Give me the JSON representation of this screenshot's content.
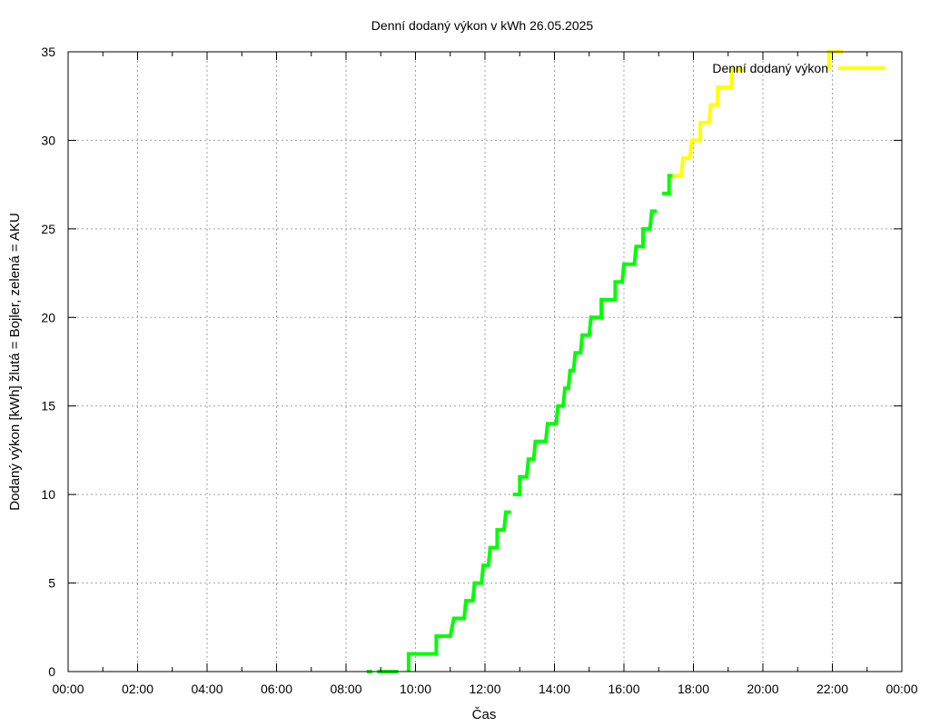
{
  "chart_data": {
    "type": "line",
    "title": "Denní dodaný výkon v kWh 26.05.2025",
    "xlabel": "Čas",
    "ylabel": "Dodaný výkon [kWh]  žlutá = Bojler, zelená = AKU",
    "xlim": [
      0,
      24
    ],
    "ylim": [
      0,
      35
    ],
    "x_ticks": [
      "00:00",
      "02:00",
      "04:00",
      "06:00",
      "08:00",
      "10:00",
      "12:00",
      "14:00",
      "16:00",
      "18:00",
      "20:00",
      "22:00",
      "00:00"
    ],
    "y_ticks": [
      "0",
      "5",
      "10",
      "15",
      "20",
      "25",
      "30",
      "35"
    ],
    "grid": true,
    "legend": {
      "position": "top-right",
      "label": "Denní dodaný výkon",
      "color": "#ffff00"
    },
    "colors": {
      "aku": "#00ff00",
      "bojler": "#ffff00",
      "grid": "#a0a0a0"
    },
    "series": [
      {
        "name": "zelená = AKU",
        "color": "#00ff00",
        "segments": [
          [
            [
              8.6,
              0
            ],
            [
              8.75,
              0
            ]
          ],
          [
            [
              8.9,
              0
            ],
            [
              9.5,
              0
            ]
          ],
          [
            [
              9.8,
              0
            ],
            [
              9.8,
              1
            ],
            [
              10.6,
              1
            ],
            [
              10.6,
              2
            ],
            [
              11.0,
              2
            ],
            [
              11.1,
              3
            ],
            [
              11.4,
              3
            ],
            [
              11.45,
              4
            ],
            [
              11.65,
              4
            ],
            [
              11.7,
              5
            ],
            [
              11.9,
              5
            ],
            [
              11.95,
              6
            ],
            [
              12.1,
              6
            ],
            [
              12.15,
              7
            ],
            [
              12.35,
              7
            ],
            [
              12.35,
              8
            ],
            [
              12.55,
              8
            ],
            [
              12.6,
              9
            ],
            [
              12.75,
              9
            ]
          ],
          [
            [
              12.8,
              10
            ],
            [
              13.0,
              10
            ],
            [
              13.0,
              11
            ],
            [
              13.2,
              11
            ],
            [
              13.25,
              12
            ],
            [
              13.4,
              12
            ],
            [
              13.45,
              13
            ],
            [
              13.75,
              13
            ],
            [
              13.8,
              14
            ],
            [
              14.05,
              14
            ],
            [
              14.1,
              15
            ],
            [
              14.25,
              15
            ],
            [
              14.3,
              16
            ],
            [
              14.4,
              16
            ],
            [
              14.45,
              17
            ],
            [
              14.55,
              17
            ],
            [
              14.6,
              18
            ],
            [
              14.75,
              18
            ],
            [
              14.8,
              19
            ],
            [
              15.0,
              19
            ],
            [
              15.05,
              20
            ],
            [
              15.35,
              20
            ],
            [
              15.35,
              21
            ],
            [
              15.75,
              21
            ],
            [
              15.75,
              22
            ],
            [
              15.95,
              22
            ],
            [
              16.0,
              23
            ],
            [
              16.3,
              23
            ],
            [
              16.35,
              24
            ],
            [
              16.55,
              24
            ],
            [
              16.55,
              25
            ],
            [
              16.75,
              25
            ],
            [
              16.8,
              26
            ],
            [
              16.95,
              26
            ]
          ],
          [
            [
              17.1,
              27
            ],
            [
              17.3,
              27
            ],
            [
              17.3,
              28
            ],
            [
              17.4,
              28
            ]
          ]
        ]
      },
      {
        "name": "žlutá = Bojler",
        "color": "#ffff00",
        "segments": [
          [
            [
              17.4,
              28
            ],
            [
              17.65,
              28
            ],
            [
              17.7,
              29
            ],
            [
              17.9,
              29
            ],
            [
              17.95,
              30
            ],
            [
              18.2,
              30
            ],
            [
              18.2,
              31
            ],
            [
              18.45,
              31
            ],
            [
              18.5,
              32
            ],
            [
              18.7,
              32
            ],
            [
              18.7,
              33
            ],
            [
              19.1,
              33
            ],
            [
              19.1,
              34
            ],
            [
              19.5,
              34
            ]
          ],
          [
            [
              21.9,
              34
            ],
            [
              21.9,
              35
            ],
            [
              22.3,
              35
            ]
          ]
        ]
      }
    ]
  }
}
